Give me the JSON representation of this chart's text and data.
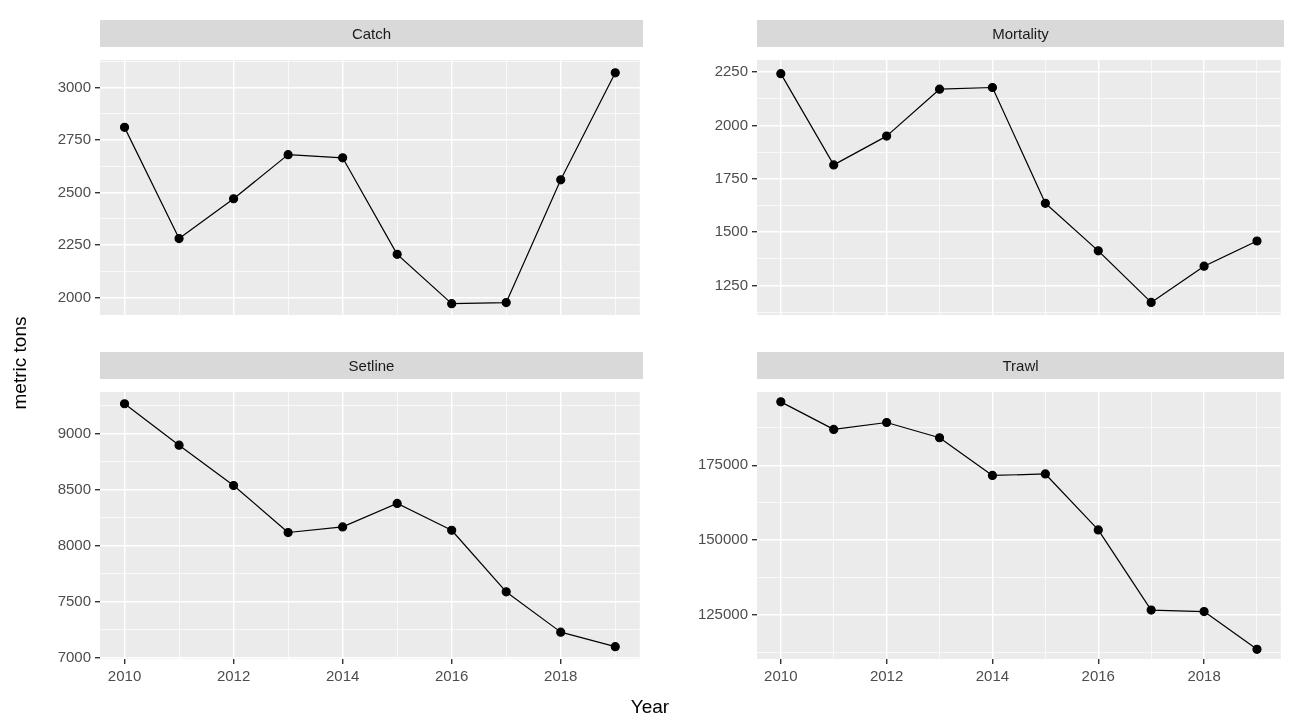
{
  "chart_data": [
    {
      "type": "line",
      "title": "Catch",
      "ylabel": "metric tons",
      "x": [
        2010,
        2011,
        2012,
        2013,
        2014,
        2015,
        2016,
        2017,
        2018,
        2019
      ],
      "values": [
        2810,
        2280,
        2470,
        2680,
        2665,
        2205,
        1970,
        1975,
        2560,
        3070
      ],
      "color": "#000000",
      "marker": "circle",
      "grid": true,
      "tick_labels": "y",
      "xlim": [
        2009.55,
        2019.45
      ],
      "xticks": [
        2010,
        {
          "value": 2011,
          "label": null
        },
        2012,
        {
          "value": 2013,
          "label": null
        },
        2014,
        {
          "value": 2015,
          "label": null
        },
        2016,
        {
          "value": 2017,
          "label": null
        },
        2018,
        {
          "value": 2019,
          "label": null
        }
      ],
      "ylim": [
        1916,
        3131
      ],
      "yticks": [
        2000,
        {
          "value": 2125,
          "label": null
        },
        2250,
        {
          "value": 2375,
          "label": null
        },
        2500,
        {
          "value": 2625,
          "label": null
        },
        2750,
        {
          "value": 2875,
          "label": null
        },
        3000,
        {
          "value": 3125,
          "label": null
        }
      ]
    },
    {
      "type": "line",
      "title": "Mortality",
      "x": [
        2010,
        2011,
        2012,
        2013,
        2014,
        2015,
        2016,
        2017,
        2018,
        2019
      ],
      "values": [
        2243,
        1815,
        1950,
        2170,
        2178,
        1635,
        1412,
        1170,
        1340,
        1458
      ],
      "color": "#000000",
      "marker": "circle",
      "grid": true,
      "tick_labels": "y",
      "xlim": [
        2009.55,
        2019.45
      ],
      "xticks": [
        2010,
        {
          "value": 2011,
          "label": null
        },
        2012,
        {
          "value": 2013,
          "label": null
        },
        2014,
        {
          "value": 2015,
          "label": null
        },
        2016,
        {
          "value": 2017,
          "label": null
        },
        2018,
        {
          "value": 2019,
          "label": null
        }
      ],
      "ylim": [
        1111,
        2307
      ],
      "yticks": [
        {
          "value": 1125,
          "label": null
        },
        1250,
        {
          "value": 1375,
          "label": null
        },
        1500,
        {
          "value": 1625,
          "label": null
        },
        1750,
        {
          "value": 1875,
          "label": null
        },
        2000,
        {
          "value": 2125,
          "label": null
        },
        2250
      ]
    },
    {
      "type": "line",
      "title": "Setline",
      "xlabel": "Year",
      "x": [
        2010,
        2011,
        2012,
        2013,
        2014,
        2015,
        2016,
        2017,
        2018,
        2019
      ],
      "values": [
        9270,
        8900,
        8540,
        8120,
        8170,
        8380,
        8140,
        7590,
        7230,
        7100
      ],
      "color": "#000000",
      "marker": "circle",
      "grid": true,
      "xlim": [
        2009.55,
        2019.45
      ],
      "xticks": [
        2010,
        {
          "value": 2011,
          "label": null
        },
        2012,
        {
          "value": 2013,
          "label": null
        },
        2014,
        {
          "value": 2015,
          "label": null
        },
        2016,
        {
          "value": 2017,
          "label": null
        },
        2018,
        {
          "value": 2019,
          "label": null
        }
      ],
      "ylim": [
        6990,
        9375
      ],
      "yticks": [
        7000,
        {
          "value": 7250,
          "label": null
        },
        7500,
        {
          "value": 7750,
          "label": null
        },
        8000,
        {
          "value": 8250,
          "label": null
        },
        8500,
        {
          "value": 8750,
          "label": null
        },
        9000,
        {
          "value": 9250,
          "label": null
        }
      ]
    },
    {
      "type": "line",
      "title": "Trawl",
      "x": [
        2010,
        2011,
        2012,
        2013,
        2014,
        2015,
        2016,
        2017,
        2018,
        2019
      ],
      "values": [
        196200,
        187000,
        189300,
        184200,
        171600,
        172100,
        153400,
        126600,
        126100,
        113500
      ],
      "color": "#000000",
      "marker": "circle",
      "grid": true,
      "xlim": [
        2009.55,
        2019.45
      ],
      "xticks": [
        2010,
        {
          "value": 2011,
          "label": null
        },
        2012,
        {
          "value": 2013,
          "label": null
        },
        2014,
        {
          "value": 2015,
          "label": null
        },
        2016,
        {
          "value": 2017,
          "label": null
        },
        2018,
        {
          "value": 2019,
          "label": null
        }
      ],
      "ylim": [
        110250,
        199500
      ],
      "yticks": [
        {
          "value": 112500,
          "label": null
        },
        125000,
        {
          "value": 137500,
          "label": null
        },
        150000,
        {
          "value": 162500,
          "label": null
        },
        175000,
        {
          "value": 187500,
          "label": null
        }
      ]
    }
  ]
}
